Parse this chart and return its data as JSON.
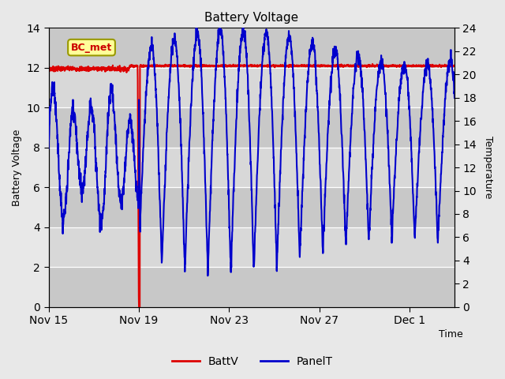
{
  "title": "Battery Voltage",
  "xlabel": "Time",
  "ylabel_left": "Battery Voltage",
  "ylabel_right": "Temperature",
  "ylim_left": [
    0,
    14
  ],
  "ylim_right": [
    0,
    24
  ],
  "yticks_left": [
    0,
    2,
    4,
    6,
    8,
    10,
    12,
    14
  ],
  "yticks_right": [
    0,
    2,
    4,
    6,
    8,
    10,
    12,
    14,
    16,
    18,
    20,
    22,
    24
  ],
  "bg_color": "#e8e8e8",
  "plot_bg_color": "#d4d4d4",
  "grid_color": "#ffffff",
  "band_colors": [
    "#c8c8c8",
    "#d8d8d8"
  ],
  "annotation_text": "BC_met",
  "annotation_color": "#cc0000",
  "annotation_bg": "#ffff99",
  "annotation_edge": "#999900",
  "legend_labels": [
    "BattV",
    "PanelT"
  ],
  "legend_colors": [
    "#dd0000",
    "#0000cc"
  ],
  "batt_color": "#dd0000",
  "panel_color": "#0000cc",
  "xtick_positions": [
    0,
    4,
    8,
    12,
    16
  ],
  "xtick_labels": [
    "Nov 15",
    "Nov 19",
    "Nov 23",
    "Nov 27",
    "Dec 1"
  ],
  "xlim": [
    0,
    18
  ]
}
